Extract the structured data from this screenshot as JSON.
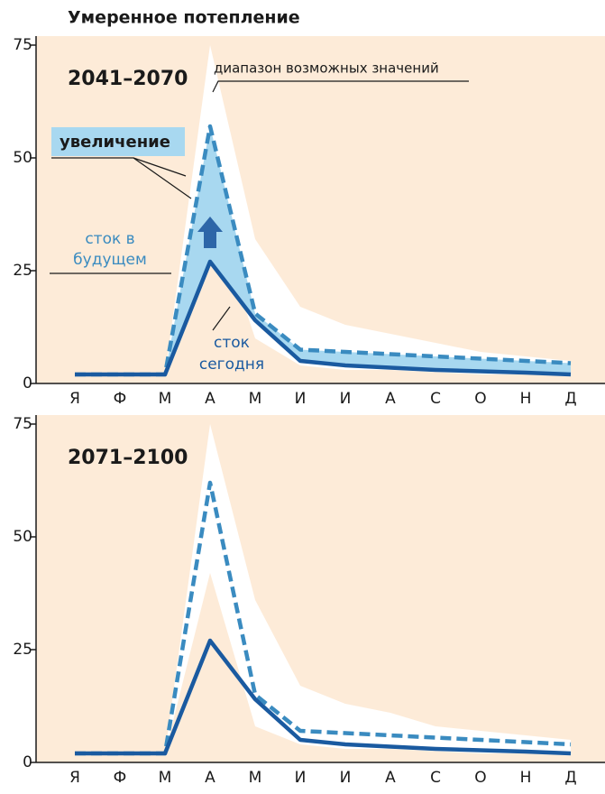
{
  "title": "Умеренное потепление",
  "chart_data": [
    {
      "type": "line",
      "label": "2041–2070",
      "categories": [
        "Я",
        "Ф",
        "М",
        "А",
        "М",
        "И",
        "И",
        "А",
        "С",
        "О",
        "Н",
        "Д"
      ],
      "ylim": [
        0,
        75
      ],
      "yticks": [
        0,
        25,
        50,
        75
      ],
      "series": [
        {
          "color": "#3a8bc0",
          "dashed": true,
          "values": [
            2,
            2,
            2,
            57,
            15.5,
            7.5,
            7,
            6.5,
            6,
            5.5,
            5,
            4.5
          ]
        },
        {
          "color": "#1a5aa0",
          "dashed": false,
          "values": [
            2,
            2,
            2,
            27,
            14,
            5,
            4,
            3.5,
            3,
            2.7,
            2.4,
            2
          ]
        }
      ],
      "range": {
        "name": "диапазон возможных значений",
        "upper": [
          2,
          2,
          2,
          75,
          32,
          17,
          13,
          11,
          9,
          7,
          6,
          5
        ],
        "lower": [
          2,
          2,
          2,
          40,
          10,
          4,
          3,
          3,
          2.5,
          2,
          2,
          1.5
        ]
      },
      "fill_label": "увеличение",
      "fill_color": "#a8d8f0",
      "future_label": [
        "сток в",
        "будущем"
      ],
      "today_label": [
        "сток",
        "сегодня"
      ]
    },
    {
      "type": "line",
      "label": "2071–2100",
      "categories": [
        "Я",
        "Ф",
        "М",
        "А",
        "М",
        "И",
        "И",
        "А",
        "С",
        "О",
        "Н",
        "Д"
      ],
      "ylim": [
        0,
        75
      ],
      "yticks": [
        0,
        25,
        50,
        75
      ],
      "series": [
        {
          "color": "#3a8bc0",
          "dashed": true,
          "values": [
            2,
            2,
            2,
            62,
            15,
            7,
            6.5,
            6,
            5.5,
            5,
            4.5,
            4
          ]
        },
        {
          "color": "#1a5aa0",
          "dashed": false,
          "values": [
            2,
            2,
            2,
            27,
            14,
            5,
            4,
            3.5,
            3,
            2.7,
            2.4,
            2
          ]
        }
      ],
      "range": {
        "upper": [
          2,
          2,
          2,
          75,
          36,
          17,
          13,
          11,
          8,
          7,
          6,
          5
        ],
        "lower": [
          2,
          2,
          2,
          42,
          8,
          4,
          3,
          3,
          2.5,
          2,
          2,
          1.5
        ]
      }
    }
  ]
}
